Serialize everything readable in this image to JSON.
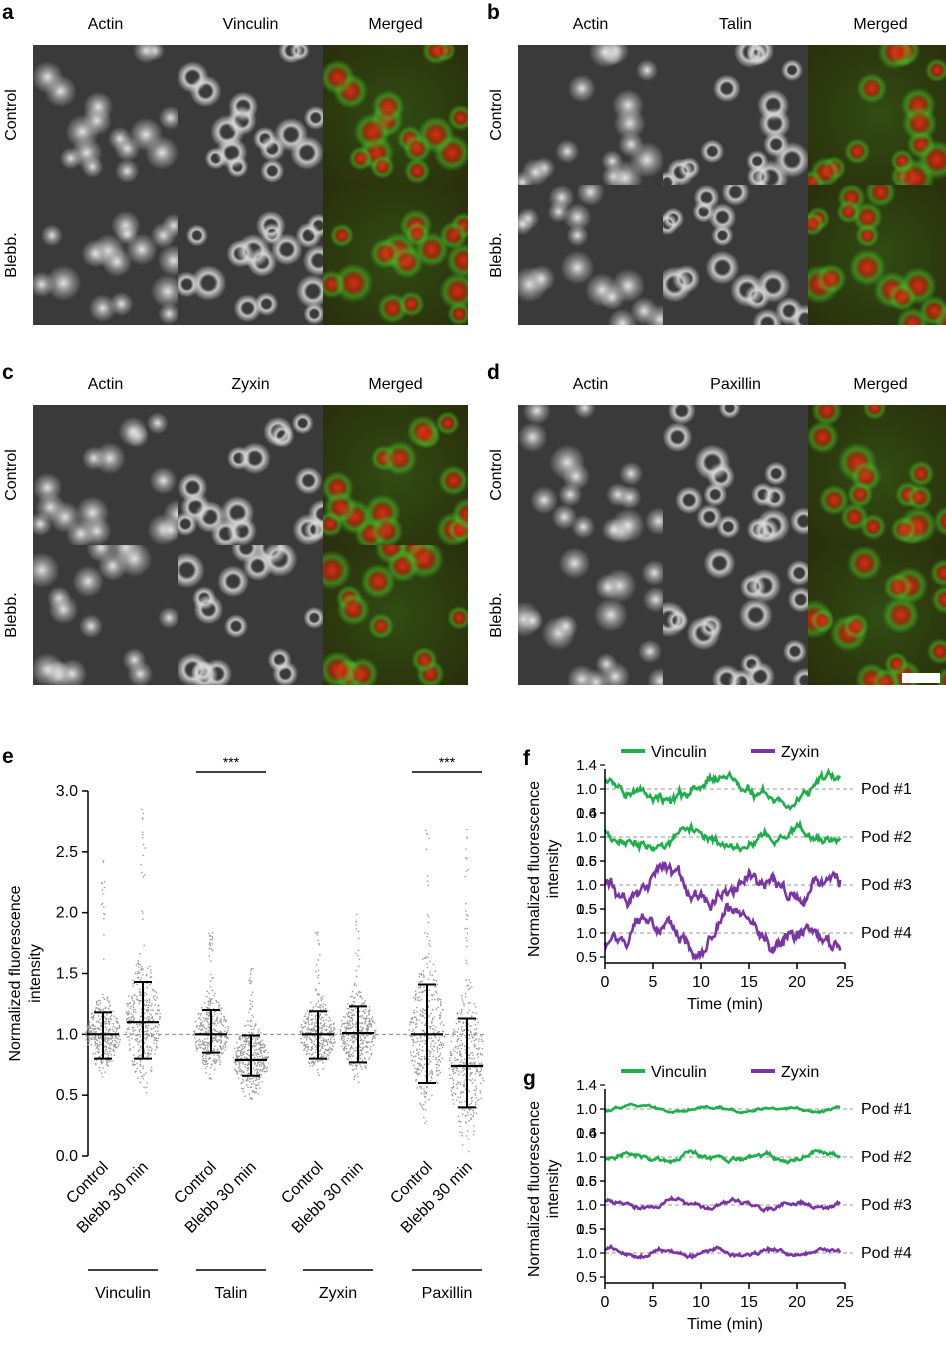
{
  "panels": {
    "a": {
      "label": "a",
      "cols": [
        "Actin",
        "Vinculin",
        "Merged"
      ],
      "rows": [
        "Control",
        "Blebb."
      ]
    },
    "b": {
      "label": "b",
      "cols": [
        "Actin",
        "Talin",
        "Merged"
      ],
      "rows": [
        "Control",
        "Blebb."
      ]
    },
    "c": {
      "label": "c",
      "cols": [
        "Actin",
        "Zyxin",
        "Merged"
      ],
      "rows": [
        "Control",
        "Blebb."
      ]
    },
    "d": {
      "label": "d",
      "cols": [
        "Actin",
        "Paxillin",
        "Merged"
      ],
      "rows": [
        "Control",
        "Blebb."
      ]
    }
  },
  "chart_data": [
    {
      "id": "e",
      "label": "e",
      "type": "scatter",
      "ylabel": "Normalized fluorescence intensity",
      "ylim": [
        0,
        3.0
      ],
      "yticks": [
        "0.0",
        "0.5",
        "1.0",
        "1.5",
        "2.0",
        "2.5",
        "3.0"
      ],
      "reference_line": 1.0,
      "categories": [
        "Control",
        "Blebb 30 min",
        "Control",
        "Blebb 30 min",
        "Control",
        "Blebb 30 min",
        "Control",
        "Blebb 30 min"
      ],
      "groups": [
        {
          "name": "Vinculin",
          "control": {
            "mean": 1.0,
            "sd_low": 0.8,
            "sd_high": 1.18,
            "max": 2.45
          },
          "blebb": {
            "mean": 1.1,
            "sd_low": 0.8,
            "sd_high": 1.43,
            "max": 2.93
          }
        },
        {
          "name": "Talin",
          "control": {
            "mean": 1.0,
            "sd_low": 0.85,
            "sd_high": 1.2,
            "max": 1.85
          },
          "blebb": {
            "mean": 0.79,
            "sd_low": 0.66,
            "sd_high": 0.99,
            "max": 1.57
          },
          "significance": "***"
        },
        {
          "name": "Zyxin",
          "control": {
            "mean": 1.0,
            "sd_low": 0.8,
            "sd_high": 1.19,
            "max": 1.9
          },
          "blebb": {
            "mean": 1.01,
            "sd_low": 0.77,
            "sd_high": 1.23,
            "max": 2.02
          }
        },
        {
          "name": "Paxillin",
          "control": {
            "mean": 1.0,
            "sd_low": 0.6,
            "sd_high": 1.41,
            "max": 2.7
          },
          "blebb": {
            "mean": 0.74,
            "sd_low": 0.4,
            "sd_high": 1.13,
            "max": 2.72
          },
          "significance": "***"
        }
      ]
    },
    {
      "id": "f",
      "label": "f",
      "type": "line",
      "xlabel": "Time (min)",
      "ylabel": "Normalized fluorescence intensity",
      "xlim": [
        0,
        25
      ],
      "xticks": [
        "0",
        "5",
        "10",
        "15",
        "20",
        "25"
      ],
      "legend": [
        {
          "name": "Vinculin",
          "color": "#1fae4b"
        },
        {
          "name": "Zyxin",
          "color": "#7a35a5"
        }
      ],
      "series": [
        {
          "name": "Pod #1",
          "color": "#1fae4b",
          "yticks": [
            "1.4",
            "1.0",
            "0.6"
          ],
          "amp": 0.16,
          "seed": 1
        },
        {
          "name": "Pod #2",
          "color": "#1fae4b",
          "yticks": [
            "1.4",
            "1.0",
            "0.6"
          ],
          "amp": 0.14,
          "seed": 2
        },
        {
          "name": "Pod #3",
          "color": "#7a35a5",
          "yticks": [
            "1.5",
            "1.0",
            "0.5"
          ],
          "amp": 0.28,
          "seed": 3
        },
        {
          "name": "Pod #4",
          "color": "#7a35a5",
          "yticks": [
            "1.5",
            "1.0",
            "0.5"
          ],
          "amp": 0.3,
          "seed": 4
        }
      ]
    },
    {
      "id": "g",
      "label": "g",
      "type": "line",
      "xlabel": "Time (min)",
      "ylabel": "Normalized fluorescence intensity",
      "xlim": [
        0,
        25
      ],
      "xticks": [
        "0",
        "5",
        "10",
        "15",
        "20",
        "25"
      ],
      "legend": [
        {
          "name": "Vinculin",
          "color": "#1fae4b"
        },
        {
          "name": "Zyxin",
          "color": "#7a35a5"
        }
      ],
      "series": [
        {
          "name": "Pod #1",
          "color": "#1fae4b",
          "yticks": [
            "1.4",
            "1.0",
            "0.6"
          ],
          "amp": 0.04,
          "seed": 5
        },
        {
          "name": "Pod #2",
          "color": "#1fae4b",
          "yticks": [
            "1.4",
            "1.0",
            "0.6"
          ],
          "amp": 0.07,
          "seed": 6
        },
        {
          "name": "Pod #3",
          "color": "#7a35a5",
          "yticks": [
            "1.5",
            "1.0",
            "0.5"
          ],
          "amp": 0.08,
          "seed": 7
        },
        {
          "name": "Pod #4",
          "color": "#7a35a5",
          "yticks": [
            "1.5",
            "1.0",
            "0.5"
          ],
          "amp": 0.08,
          "seed": 8
        }
      ]
    }
  ]
}
